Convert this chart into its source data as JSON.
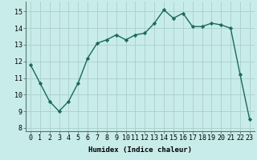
{
  "x": [
    0,
    1,
    2,
    3,
    4,
    5,
    6,
    7,
    8,
    9,
    10,
    11,
    12,
    13,
    14,
    15,
    16,
    17,
    18,
    19,
    20,
    21,
    22,
    23
  ],
  "y": [
    11.8,
    10.7,
    9.6,
    9.0,
    9.6,
    10.7,
    12.2,
    13.1,
    13.3,
    13.6,
    13.3,
    13.6,
    13.7,
    14.3,
    15.1,
    14.6,
    14.9,
    14.1,
    14.1,
    14.3,
    14.2,
    14.0,
    11.2,
    8.5
  ],
  "line_color": "#1a6b5a",
  "marker": "D",
  "marker_size": 2.2,
  "bg_color": "#c8ecea",
  "grid_color": "#aacfcc",
  "xlabel": "Humidex (Indice chaleur)",
  "ylim": [
    7.8,
    15.6
  ],
  "xlim": [
    -0.5,
    23.5
  ],
  "yticks": [
    8,
    9,
    10,
    11,
    12,
    13,
    14,
    15
  ],
  "xticks": [
    0,
    1,
    2,
    3,
    4,
    5,
    6,
    7,
    8,
    9,
    10,
    11,
    12,
    13,
    14,
    15,
    16,
    17,
    18,
    19,
    20,
    21,
    22,
    23
  ],
  "xlabel_fontsize": 6.5,
  "tick_fontsize": 6.0,
  "line_width": 1.0
}
